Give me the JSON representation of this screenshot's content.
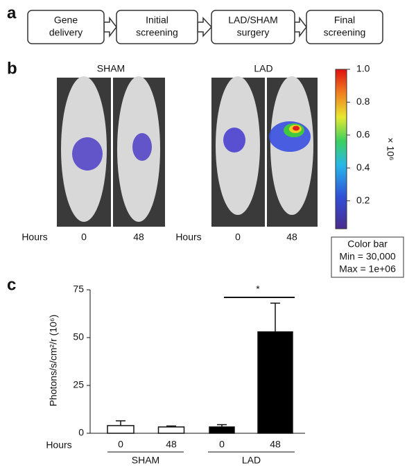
{
  "panel_a": {
    "label": "a",
    "steps": [
      [
        "Gene",
        "delivery"
      ],
      [
        "Initial",
        "screening"
      ],
      [
        "LAD/SHAM",
        "surgery"
      ],
      [
        "Final",
        "screening"
      ]
    ]
  },
  "panel_b": {
    "label": "b",
    "hours_label": "Hours",
    "groups": [
      {
        "name": "SHAM",
        "hours": [
          "0",
          "48"
        ]
      },
      {
        "name": "LAD",
        "hours": [
          "0",
          "48"
        ]
      }
    ],
    "colorbar": {
      "lim": [
        0.03,
        1.0
      ],
      "ticks": [
        {
          "value": 1,
          "label": "1.0"
        },
        0.8,
        0.6,
        0.4,
        0.2
      ],
      "unit": "× 10⁶",
      "legend": [
        "Color bar",
        "Min = 30,000",
        "Max = 1e+06"
      ]
    }
  },
  "chart_data": {
    "type": "bar",
    "label": "c",
    "ylabel": "Photons/s/cm²/r (10⁶)",
    "xlabel": "Hours",
    "ylim": [
      0,
      75
    ],
    "yticks": [
      0,
      25,
      50,
      75
    ],
    "groups": [
      {
        "name": "SHAM",
        "categories": [
          "0",
          "48"
        ],
        "values": [
          4,
          3.3
        ],
        "errors": [
          2.5,
          0.5
        ],
        "color": "#ffffff"
      },
      {
        "name": "LAD",
        "categories": [
          "0",
          "48"
        ],
        "values": [
          3.3,
          53
        ],
        "errors": [
          1.2,
          15
        ],
        "color": "#000000"
      }
    ],
    "annotation": "*"
  }
}
